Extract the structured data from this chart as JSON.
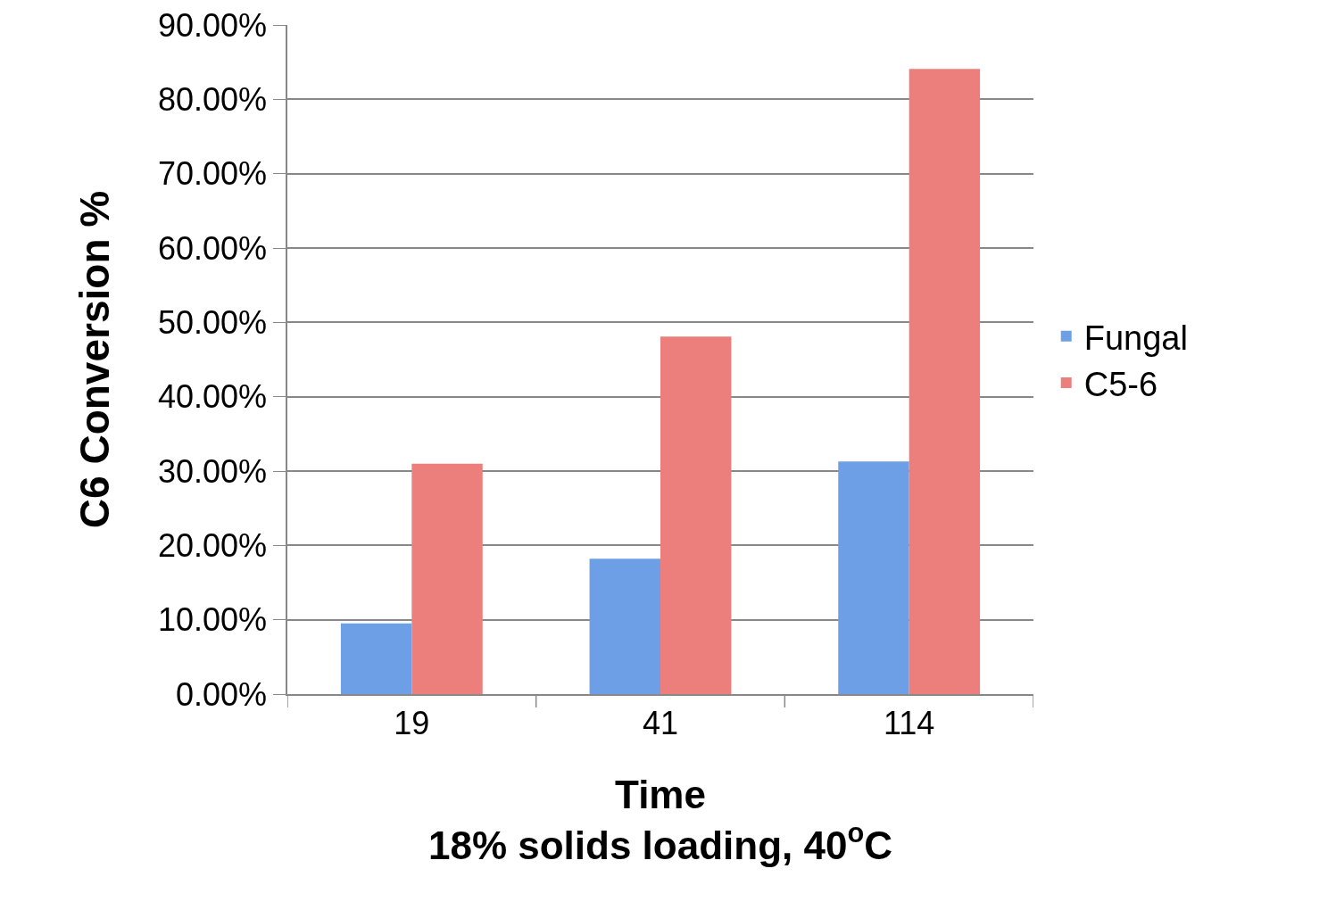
{
  "chart_data": {
    "type": "bar",
    "xlabel": "Time\n18% solids loading, 40$^{o}$C",
    "ylabel": "C6 Conversion %",
    "categories": [
      "19",
      "41",
      "114"
    ],
    "series": [
      {
        "name": "Fungal",
        "color": "#6c9fe6",
        "values": [
          9.5,
          18.2,
          31.3
        ]
      },
      {
        "name": "C5-6",
        "color": "#ec7f7c",
        "values": [
          31.0,
          48.1,
          84.1
        ]
      }
    ],
    "ylim": [
      0,
      90
    ],
    "yticks": [
      {
        "value": 0,
        "label": "0.00%"
      },
      {
        "value": 10,
        "label": "10.00%"
      },
      {
        "value": 20,
        "label": "20.00%"
      },
      {
        "value": 30,
        "label": "30.00%"
      },
      {
        "value": 40,
        "label": "40.00%"
      },
      {
        "value": 50,
        "label": "50.00%"
      },
      {
        "value": 60,
        "label": "60.00%"
      },
      {
        "value": 70,
        "label": "70.00%"
      },
      {
        "value": 80,
        "label": "80.00%"
      },
      {
        "value": 90,
        "label": "90.00%"
      }
    ],
    "grid": "y",
    "legend": "right"
  }
}
